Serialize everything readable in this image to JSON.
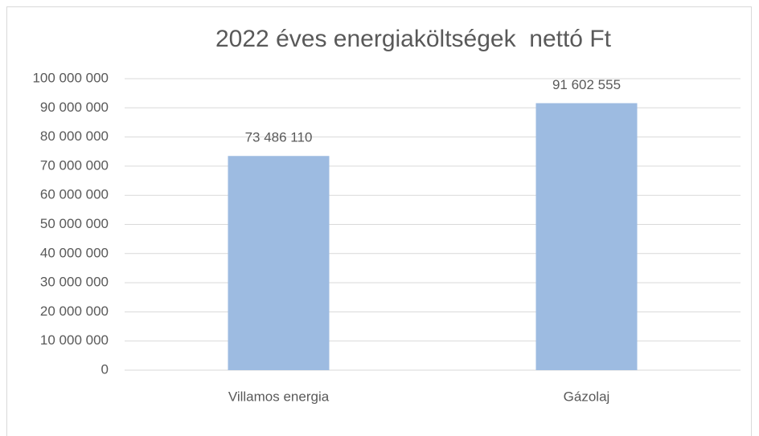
{
  "chart_data": {
    "type": "bar",
    "title": "2022 éves energiaköltségek  nettó Ft",
    "categories": [
      "Villamos energia",
      "Gázolaj"
    ],
    "values": [
      73486110,
      91602555
    ],
    "value_labels": [
      "73 486 110",
      "91 602 555"
    ],
    "color": "#9dbbe1",
    "ylim": [
      0,
      100000000
    ],
    "yticks": [
      {
        "value": 0,
        "label": "0"
      },
      {
        "value": 10000000,
        "label": "10 000 000"
      },
      {
        "value": 20000000,
        "label": "20 000 000"
      },
      {
        "value": 30000000,
        "label": "30 000 000"
      },
      {
        "value": 40000000,
        "label": "40 000 000"
      },
      {
        "value": 50000000,
        "label": "50 000 000"
      },
      {
        "value": 60000000,
        "label": "60 000 000"
      },
      {
        "value": 70000000,
        "label": "70 000 000"
      },
      {
        "value": 80000000,
        "label": "80 000 000"
      },
      {
        "value": 90000000,
        "label": "90 000 000"
      },
      {
        "value": 100000000,
        "label": "100 000 000"
      }
    ],
    "grid": true
  }
}
